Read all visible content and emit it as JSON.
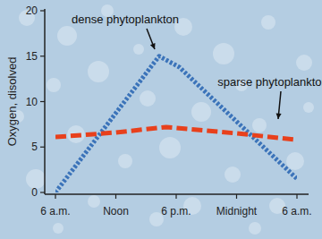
{
  "chart_data": {
    "type": "line",
    "y_label": "Oxygen, disolved",
    "xlim": [
      0,
      24
    ],
    "xticks": [
      {
        "value": 0,
        "label": "6 a.m."
      },
      {
        "value": 6,
        "label": "Noon"
      },
      {
        "value": 12,
        "label": "6 p.m."
      },
      {
        "value": 18,
        "label": "Midnight"
      },
      {
        "value": 24,
        "label": "6 a.m."
      }
    ],
    "ylim": [
      0,
      20
    ],
    "yticks": [
      0,
      5,
      10,
      15,
      20
    ],
    "grid": false,
    "series": [
      {
        "name": "dense phytoplankton",
        "color": "#3b73b9",
        "line_style": "dotted",
        "x": [
          0,
          10.3,
          12.3,
          24
        ],
        "values": [
          0,
          15,
          13.8,
          1.5
        ]
      },
      {
        "name": "sparse phytoplankton",
        "color": "#e8401c",
        "line_style": "dashed",
        "x": [
          0,
          6,
          11,
          18,
          24
        ],
        "values": [
          6.1,
          6.6,
          7.2,
          6.5,
          5.8
        ]
      }
    ]
  }
}
